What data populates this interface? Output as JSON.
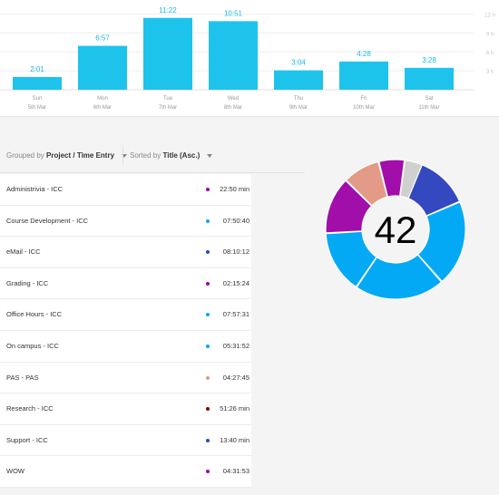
{
  "bar_chart": {
    "y_ticks": [
      "12 h",
      "9 h",
      "6 h",
      "3 h"
    ],
    "days": [
      {
        "day": "Sun",
        "date": "5th Mar",
        "label": "2:01",
        "hours": 2.02
      },
      {
        "day": "Mon",
        "date": "6th Mar",
        "label": "6:57",
        "hours": 6.95
      },
      {
        "day": "Tue",
        "date": "7th Mar",
        "label": "11:22",
        "hours": 11.37
      },
      {
        "day": "Wed",
        "date": "8th Mar",
        "label": "10:51",
        "hours": 10.85
      },
      {
        "day": "Thu",
        "date": "9th Mar",
        "label": "3:04",
        "hours": 3.07
      },
      {
        "day": "Fri",
        "date": "10th Mar",
        "label": "4:28",
        "hours": 4.47
      },
      {
        "day": "Sat",
        "date": "11th Mar",
        "label": "3:28",
        "hours": 3.47
      }
    ],
    "bar_color": "#1ec3ec"
  },
  "controls": {
    "grouped_prefix": "Grouped by",
    "grouped_value": "Project / Time Entry",
    "sorted_prefix": "Sorted by",
    "sorted_value": "Title (Asc.)"
  },
  "entries": [
    {
      "label": "Administrivia - ICC",
      "time": "22:50 min",
      "color": "#a000b0"
    },
    {
      "label": "Course Development - ICC",
      "time": "07:50:40",
      "color": "#12a6ee"
    },
    {
      "label": "eMail - ICC",
      "time": "08:10:12",
      "color": "#2e48c0"
    },
    {
      "label": "Grading - ICC",
      "time": "02:15:24",
      "color": "#a000b0"
    },
    {
      "label": "Office Hours - ICC",
      "time": "07:57:31",
      "color": "#12a6ee"
    },
    {
      "label": "On campus - ICC",
      "time": "05:31:52",
      "color": "#12a6ee"
    },
    {
      "label": "PAS - PAS",
      "time": "04:27:45",
      "color": "#e39a86"
    },
    {
      "label": "Research - ICC",
      "time": "51:26 min",
      "color": "#8b0000"
    },
    {
      "label": "Support - ICC",
      "time": "13:40 min",
      "color": "#2e48c0"
    },
    {
      "label": "WOW",
      "time": "04:31:53",
      "color": "#a000b0"
    }
  ],
  "donut": {
    "center_text": "42",
    "segments": [
      {
        "color": "#3449bf",
        "share": 0.185
      },
      {
        "color": "#03a9f4",
        "share": 0.2
      },
      {
        "color": "#03a9f4",
        "share": 0.21
      },
      {
        "color": "#03a9f4",
        "share": 0.146
      },
      {
        "color": "#a10eaa",
        "share": 0.133
      },
      {
        "color": "#e39a86",
        "share": 0.087
      },
      {
        "color": "#a10eaa",
        "share": 0.06
      },
      {
        "color": "#d0d0d0",
        "share": 0.042
      }
    ]
  }
}
